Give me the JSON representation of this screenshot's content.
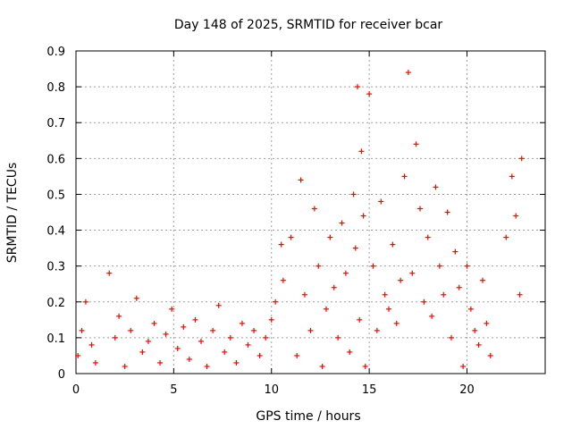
{
  "chart_data": {
    "type": "scatter",
    "title": "Day 148 of 2025, SRMTID for receiver bcar",
    "xlabel": "GPS time / hours",
    "ylabel": "SRMTID / TECUs",
    "xlim": [
      0,
      24
    ],
    "ylim": [
      0,
      0.9
    ],
    "xticks": [
      0,
      5,
      10,
      15,
      20
    ],
    "yticks": [
      0,
      0.1,
      0.2,
      0.3,
      0.4,
      0.5,
      0.6,
      0.7,
      0.8,
      0.9
    ],
    "grid": true,
    "marker": "+",
    "series_color": "#ff0000",
    "series": [
      {
        "name": "SRMTID",
        "x": [
          0.1,
          0.3,
          0.5,
          0.8,
          1.0,
          1.7,
          2.0,
          2.2,
          2.5,
          2.8,
          3.1,
          3.4,
          3.7,
          4.0,
          4.3,
          4.6,
          4.9,
          5.2,
          5.5,
          5.8,
          6.1,
          6.4,
          6.7,
          7.0,
          7.3,
          7.6,
          7.9,
          8.2,
          8.5,
          8.8,
          9.1,
          9.4,
          9.7,
          10.0,
          10.2,
          10.5,
          10.6,
          11.0,
          11.3,
          11.5,
          11.7,
          12.0,
          12.2,
          12.4,
          12.6,
          12.8,
          13.0,
          13.2,
          13.4,
          13.6,
          13.8,
          14.0,
          14.2,
          14.3,
          14.4,
          14.5,
          14.6,
          14.7,
          14.8,
          15.0,
          15.2,
          15.4,
          15.6,
          15.8,
          16.0,
          16.2,
          16.4,
          16.6,
          16.8,
          17.0,
          17.2,
          17.4,
          17.6,
          17.8,
          18.0,
          18.2,
          18.4,
          18.6,
          18.8,
          19.0,
          19.2,
          19.4,
          19.6,
          19.8,
          20.0,
          20.2,
          20.4,
          20.6,
          20.8,
          21.0,
          21.2,
          22.0,
          22.3,
          22.5,
          22.7,
          22.8
        ],
        "y": [
          0.05,
          0.12,
          0.2,
          0.08,
          0.03,
          0.28,
          0.1,
          0.16,
          0.02,
          0.12,
          0.21,
          0.06,
          0.09,
          0.14,
          0.03,
          0.11,
          0.18,
          0.07,
          0.13,
          0.04,
          0.15,
          0.09,
          0.02,
          0.12,
          0.19,
          0.06,
          0.1,
          0.03,
          0.14,
          0.08,
          0.12,
          0.05,
          0.1,
          0.15,
          0.2,
          0.36,
          0.26,
          0.38,
          0.05,
          0.54,
          0.22,
          0.12,
          0.46,
          0.3,
          0.02,
          0.18,
          0.38,
          0.24,
          0.1,
          0.42,
          0.28,
          0.06,
          0.5,
          0.35,
          0.8,
          0.15,
          0.62,
          0.44,
          0.02,
          0.78,
          0.3,
          0.12,
          0.48,
          0.22,
          0.18,
          0.36,
          0.14,
          0.26,
          0.55,
          0.84,
          0.28,
          0.64,
          0.46,
          0.2,
          0.38,
          0.16,
          0.52,
          0.3,
          0.22,
          0.45,
          0.1,
          0.34,
          0.24,
          0.02,
          0.3,
          0.18,
          0.12,
          0.08,
          0.26,
          0.14,
          0.05,
          0.38,
          0.55,
          0.44,
          0.22,
          0.6
        ]
      }
    ]
  }
}
